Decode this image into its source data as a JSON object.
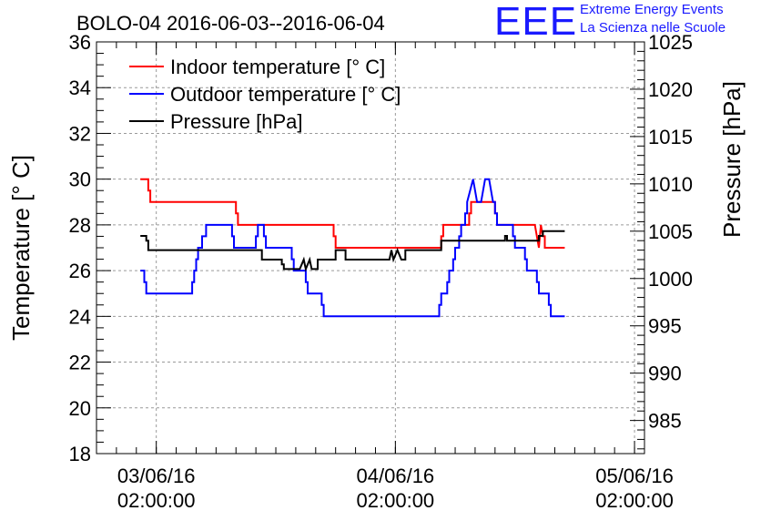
{
  "header": {
    "logo_text": "EEE",
    "logo_line1": "Extreme Energy Events",
    "logo_line2": "La Scienza nelle Scuole",
    "logo_color": "#1a1aff"
  },
  "chart_data": {
    "type": "line",
    "title": "BOLO-04 2016-06-03--2016-06-04",
    "xlabel": "",
    "ylabel": "Temperature [° C]",
    "ylabel_right": "Pressure [hPa]",
    "xlim": [
      "2016-06-02T20:00:00",
      "2016-06-05T03:00:00"
    ],
    "ylim": [
      18,
      36
    ],
    "ylim_right": [
      981.5,
      1025
    ],
    "grid": true,
    "legend_position": "top-left",
    "x_ticks": [
      {
        "date": "03/06/16",
        "time": "02:00:00",
        "value": "2016-06-03T02:00:00"
      },
      {
        "date": "04/06/16",
        "time": "02:00:00",
        "value": "2016-06-04T02:00:00"
      },
      {
        "date": "05/06/16",
        "time": "02:00:00",
        "value": "2016-06-05T02:00:00"
      }
    ],
    "y_ticks": [
      "18",
      "20",
      "22",
      "24",
      "26",
      "28",
      "30",
      "32",
      "34",
      "36"
    ],
    "y_right_ticks": [
      "985",
      "990",
      "995",
      "1000",
      "1005",
      "1010",
      "1015",
      "1020",
      "1025"
    ],
    "series": [
      {
        "name": "Indoor temperature [° C]",
        "axis": "left",
        "color": "#ff0000",
        "points": [
          [
            "2016-06-03T00:24",
            30
          ],
          [
            "2016-06-03T01:12",
            30
          ],
          [
            "2016-06-03T01:12",
            29.5
          ],
          [
            "2016-06-03T01:24",
            29.5
          ],
          [
            "2016-06-03T01:24",
            29
          ],
          [
            "2016-06-03T10:00",
            29
          ],
          [
            "2016-06-03T10:00",
            28.5
          ],
          [
            "2016-06-03T10:12",
            28.5
          ],
          [
            "2016-06-03T10:12",
            28
          ],
          [
            "2016-06-03T19:48",
            28
          ],
          [
            "2016-06-03T19:48",
            27.5
          ],
          [
            "2016-06-03T20:00",
            27.5
          ],
          [
            "2016-06-03T20:00",
            27
          ],
          [
            "2016-06-04T06:36",
            27
          ],
          [
            "2016-06-04T06:36",
            27.5
          ],
          [
            "2016-06-04T06:48",
            27.5
          ],
          [
            "2016-06-04T06:48",
            28
          ],
          [
            "2016-06-04T09:24",
            28
          ],
          [
            "2016-06-04T09:24",
            28.5
          ],
          [
            "2016-06-04T09:36",
            28.5
          ],
          [
            "2016-06-04T09:36",
            29
          ],
          [
            "2016-06-04T12:00",
            29
          ],
          [
            "2016-06-04T12:00",
            28.5
          ],
          [
            "2016-06-04T12:12",
            28.5
          ],
          [
            "2016-06-04T12:12",
            28
          ],
          [
            "2016-06-04T16:00",
            28
          ],
          [
            "2016-06-04T16:24",
            27
          ],
          [
            "2016-06-04T16:36",
            28
          ],
          [
            "2016-06-04T16:48",
            27.5
          ],
          [
            "2016-06-04T17:00",
            27.5
          ],
          [
            "2016-06-04T17:00",
            27
          ],
          [
            "2016-06-04T19:00",
            27
          ]
        ]
      },
      {
        "name": "Outdoor temperature [° C]",
        "axis": "left",
        "color": "#0000ff",
        "points": [
          [
            "2016-06-03T00:24",
            26
          ],
          [
            "2016-06-03T00:48",
            26
          ],
          [
            "2016-06-03T00:48",
            25.5
          ],
          [
            "2016-06-03T01:00",
            25.5
          ],
          [
            "2016-06-03T01:00",
            25
          ],
          [
            "2016-06-03T05:36",
            25
          ],
          [
            "2016-06-03T05:36",
            25.5
          ],
          [
            "2016-06-03T05:48",
            25.5
          ],
          [
            "2016-06-03T05:48",
            26
          ],
          [
            "2016-06-03T06:00",
            26
          ],
          [
            "2016-06-03T06:00",
            26.5
          ],
          [
            "2016-06-03T06:12",
            26.5
          ],
          [
            "2016-06-03T06:12",
            27
          ],
          [
            "2016-06-03T06:36",
            27
          ],
          [
            "2016-06-03T06:36",
            27.5
          ],
          [
            "2016-06-03T07:00",
            27.5
          ],
          [
            "2016-06-03T07:00",
            28
          ],
          [
            "2016-06-03T09:36",
            28
          ],
          [
            "2016-06-03T09:36",
            27.5
          ],
          [
            "2016-06-03T09:48",
            27.5
          ],
          [
            "2016-06-03T09:48",
            27
          ],
          [
            "2016-06-03T12:00",
            27
          ],
          [
            "2016-06-03T12:00",
            27.5
          ],
          [
            "2016-06-03T12:12",
            27.5
          ],
          [
            "2016-06-03T12:12",
            28
          ],
          [
            "2016-06-03T12:48",
            28
          ],
          [
            "2016-06-03T12:48",
            27.5
          ],
          [
            "2016-06-03T13:00",
            27.5
          ],
          [
            "2016-06-03T13:00",
            27
          ],
          [
            "2016-06-03T15:36",
            27
          ],
          [
            "2016-06-03T15:36",
            26.5
          ],
          [
            "2016-06-03T15:48",
            26.5
          ],
          [
            "2016-06-03T15:48",
            26
          ],
          [
            "2016-06-03T17:00",
            26
          ],
          [
            "2016-06-03T17:00",
            25.5
          ],
          [
            "2016-06-03T17:12",
            25.5
          ],
          [
            "2016-06-03T17:12",
            25
          ],
          [
            "2016-06-03T18:36",
            25
          ],
          [
            "2016-06-03T18:36",
            24.5
          ],
          [
            "2016-06-03T18:48",
            24.5
          ],
          [
            "2016-06-03T18:48",
            24
          ],
          [
            "2016-06-04T06:24",
            24
          ],
          [
            "2016-06-04T06:24",
            24.5
          ],
          [
            "2016-06-04T06:36",
            24.5
          ],
          [
            "2016-06-04T06:36",
            25
          ],
          [
            "2016-06-04T07:12",
            25
          ],
          [
            "2016-06-04T07:12",
            25.5
          ],
          [
            "2016-06-04T07:24",
            25.5
          ],
          [
            "2016-06-04T07:24",
            26
          ],
          [
            "2016-06-04T07:48",
            26
          ],
          [
            "2016-06-04T07:48",
            26.5
          ],
          [
            "2016-06-04T08:00",
            26.5
          ],
          [
            "2016-06-04T08:00",
            27
          ],
          [
            "2016-06-04T08:24",
            27
          ],
          [
            "2016-06-04T08:24",
            27.5
          ],
          [
            "2016-06-04T08:36",
            27.5
          ],
          [
            "2016-06-04T08:36",
            28
          ],
          [
            "2016-06-04T09:00",
            28
          ],
          [
            "2016-06-04T09:00",
            28.5
          ],
          [
            "2016-06-04T09:12",
            28.5
          ],
          [
            "2016-06-04T09:12",
            29
          ],
          [
            "2016-06-04T09:48",
            30
          ],
          [
            "2016-06-04T10:12",
            29
          ],
          [
            "2016-06-04T10:36",
            29
          ],
          [
            "2016-06-04T11:00",
            30
          ],
          [
            "2016-06-04T11:24",
            30
          ],
          [
            "2016-06-04T11:48",
            29
          ],
          [
            "2016-06-04T12:00",
            29
          ],
          [
            "2016-06-04T12:00",
            28.5
          ],
          [
            "2016-06-04T12:12",
            28.5
          ],
          [
            "2016-06-04T12:12",
            28
          ],
          [
            "2016-06-04T13:48",
            28
          ],
          [
            "2016-06-04T13:48",
            27.5
          ],
          [
            "2016-06-04T14:00",
            27.5
          ],
          [
            "2016-06-04T14:00",
            27
          ],
          [
            "2016-06-04T15:00",
            27
          ],
          [
            "2016-06-04T15:00",
            26.5
          ],
          [
            "2016-06-04T15:12",
            26.5
          ],
          [
            "2016-06-04T15:12",
            26
          ],
          [
            "2016-06-04T16:12",
            26
          ],
          [
            "2016-06-04T16:12",
            25.5
          ],
          [
            "2016-06-04T16:24",
            25.5
          ],
          [
            "2016-06-04T16:24",
            25
          ],
          [
            "2016-06-04T17:24",
            25
          ],
          [
            "2016-06-04T17:24",
            24.5
          ],
          [
            "2016-06-04T17:36",
            24.5
          ],
          [
            "2016-06-04T17:36",
            24
          ],
          [
            "2016-06-04T19:00",
            24
          ]
        ]
      },
      {
        "name": "Pressure [hPa]",
        "axis": "right",
        "color": "#000000",
        "points": [
          [
            "2016-06-03T00:24",
            1004.5
          ],
          [
            "2016-06-03T01:00",
            1004.5
          ],
          [
            "2016-06-03T01:00",
            1004
          ],
          [
            "2016-06-03T01:12",
            1004
          ],
          [
            "2016-06-03T01:12",
            1003
          ],
          [
            "2016-06-03T12:36",
            1003
          ],
          [
            "2016-06-03T12:36",
            1002
          ],
          [
            "2016-06-03T14:36",
            1002
          ],
          [
            "2016-06-03T14:36",
            1001.5
          ],
          [
            "2016-06-03T14:48",
            1001.5
          ],
          [
            "2016-06-03T14:48",
            1001
          ],
          [
            "2016-06-03T16:24",
            1001
          ],
          [
            "2016-06-03T16:48",
            1002
          ],
          [
            "2016-06-03T17:00",
            1001
          ],
          [
            "2016-06-03T17:24",
            1002
          ],
          [
            "2016-06-03T17:36",
            1001
          ],
          [
            "2016-06-03T18:12",
            1001
          ],
          [
            "2016-06-03T18:12",
            1002
          ],
          [
            "2016-06-03T20:00",
            1002
          ],
          [
            "2016-06-03T20:00",
            1003
          ],
          [
            "2016-06-03T21:00",
            1003
          ],
          [
            "2016-06-03T21:00",
            1002
          ],
          [
            "2016-06-03T22:24",
            1002
          ],
          [
            "2016-06-04T01:24",
            1002
          ],
          [
            "2016-06-04T01:36",
            1003
          ],
          [
            "2016-06-04T01:48",
            1002
          ],
          [
            "2016-06-04T02:12",
            1003
          ],
          [
            "2016-06-04T02:36",
            1002
          ],
          [
            "2016-06-04T03:00",
            1002
          ],
          [
            "2016-06-04T03:00",
            1003
          ],
          [
            "2016-06-04T06:36",
            1003
          ],
          [
            "2016-06-04T06:36",
            1004
          ],
          [
            "2016-06-04T13:00",
            1004
          ],
          [
            "2016-06-04T13:00",
            1004.5
          ],
          [
            "2016-06-04T13:12",
            1004.5
          ],
          [
            "2016-06-04T13:12",
            1004
          ],
          [
            "2016-06-04T16:24",
            1004
          ],
          [
            "2016-06-04T16:24",
            1004.5
          ],
          [
            "2016-06-04T16:48",
            1004.5
          ],
          [
            "2016-06-04T16:48",
            1005
          ],
          [
            "2016-06-04T19:00",
            1005
          ]
        ]
      }
    ]
  }
}
